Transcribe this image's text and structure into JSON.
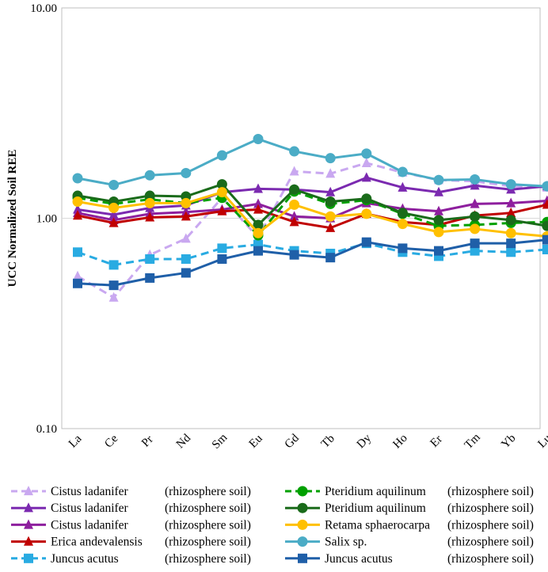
{
  "chart_data": {
    "type": "line",
    "title": "",
    "xlabel": "",
    "ylabel": "UCC Normalized Soil REE",
    "yscale": "log",
    "ylim": [
      0.1,
      10
    ],
    "yticks": [
      "0.10",
      "1.00",
      "10.00"
    ],
    "categories": [
      "La",
      "Ce",
      "Pr",
      "Nd",
      "Sm",
      "Eu",
      "Gd",
      "Tb",
      "Dy",
      "Ho",
      "Er",
      "Tm",
      "Yb",
      "Lu"
    ],
    "series": [
      {
        "name": "Cistus ladanifer",
        "suffix": "(rhizosphere soil)",
        "color": "#c9a8f0",
        "dash": true,
        "marker": "triangle",
        "values": [
          0.53,
          0.42,
          0.67,
          0.8,
          1.25,
          0.81,
          1.67,
          1.63,
          1.83,
          1.65,
          1.52,
          1.5,
          1.42,
          1.4
        ]
      },
      {
        "name": "Cistus ladanifer",
        "suffix": "(rhizosphere soil)",
        "color": "#7b2ab0",
        "dash": false,
        "marker": "triangle",
        "values": [
          1.1,
          1.04,
          1.12,
          1.15,
          1.33,
          1.38,
          1.37,
          1.33,
          1.56,
          1.4,
          1.33,
          1.43,
          1.37,
          1.42
        ]
      },
      {
        "name": "Cistus ladanifer",
        "suffix": "(rhizosphere soil)",
        "color": "#8e1f9e",
        "dash": false,
        "marker": "triangle",
        "values": [
          1.06,
          0.98,
          1.05,
          1.07,
          1.1,
          1.17,
          1.02,
          1.0,
          1.18,
          1.11,
          1.08,
          1.17,
          1.18,
          1.21
        ]
      },
      {
        "name": "Erica andevalensis",
        "suffix": "(rhizosphere soil)",
        "color": "#c00000",
        "dash": false,
        "marker": "triangle",
        "values": [
          1.03,
          0.95,
          1.01,
          1.02,
          1.08,
          1.1,
          0.96,
          0.9,
          1.05,
          0.96,
          0.93,
          1.03,
          1.06,
          1.16
        ]
      },
      {
        "name": "Juncus acutus",
        "suffix": "(rhizosphere soil)",
        "color": "#29abe2",
        "dash": true,
        "marker": "square",
        "values": [
          0.69,
          0.6,
          0.64,
          0.64,
          0.72,
          0.75,
          0.7,
          0.68,
          0.76,
          0.69,
          0.66,
          0.7,
          0.69,
          0.71
        ]
      },
      {
        "name": "Pteridium aquilinum",
        "suffix": "(rhizosphere soil)",
        "color": "#00a000",
        "dash": true,
        "marker": "circle",
        "values": [
          1.25,
          1.17,
          1.23,
          1.18,
          1.25,
          0.83,
          1.34,
          1.17,
          1.22,
          1.05,
          0.92,
          0.93,
          0.95,
          0.96
        ]
      },
      {
        "name": "Pteridium aquilinum",
        "suffix": "(rhizosphere soil)",
        "color": "#1a6b1a",
        "dash": false,
        "marker": "circle",
        "values": [
          1.28,
          1.2,
          1.28,
          1.27,
          1.45,
          0.93,
          1.37,
          1.2,
          1.24,
          1.06,
          0.98,
          1.02,
          0.98,
          0.92
        ]
      },
      {
        "name": "Retama sphaerocarpa",
        "suffix": "(rhizosphere soil)",
        "color": "#ffc000",
        "dash": false,
        "marker": "circle",
        "values": [
          1.2,
          1.12,
          1.18,
          1.18,
          1.33,
          0.85,
          1.16,
          1.02,
          1.05,
          0.94,
          0.86,
          0.89,
          0.85,
          0.82
        ]
      },
      {
        "name": "Salix sp.",
        "suffix": "(rhizosphere soil)",
        "color": "#4bacc6",
        "dash": false,
        "marker": "circle",
        "values": [
          1.55,
          1.44,
          1.6,
          1.64,
          1.99,
          2.38,
          2.08,
          1.93,
          2.03,
          1.66,
          1.52,
          1.53,
          1.45,
          1.42
        ]
      },
      {
        "name": "Juncus acutus",
        "suffix": "(rhizosphere soil)",
        "color": "#1f5fa8",
        "dash": false,
        "marker": "square",
        "values": [
          0.49,
          0.48,
          0.52,
          0.55,
          0.64,
          0.7,
          0.67,
          0.65,
          0.77,
          0.72,
          0.7,
          0.76,
          0.76,
          0.79
        ]
      }
    ]
  }
}
